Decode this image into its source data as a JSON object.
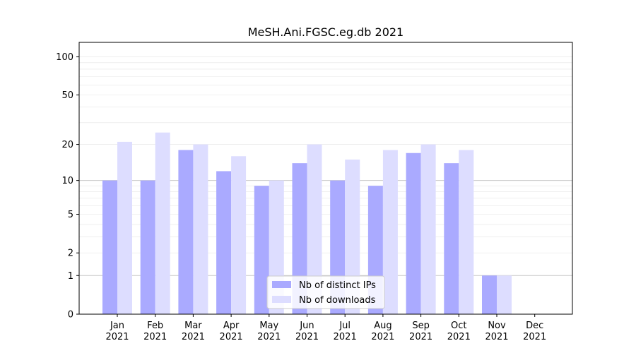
{
  "chart_data": {
    "type": "bar",
    "title": "MeSH.Ani.FGSC.eg.db 2021",
    "xlabel": "",
    "ylabel": "",
    "yscale": "log(1+y)",
    "ylim": [
      0,
      130
    ],
    "yticks": [
      0,
      1,
      2,
      5,
      10,
      20,
      50,
      100
    ],
    "grid": true,
    "legend_position": "bottom-center",
    "categories": [
      "Jan\n2021",
      "Feb\n2021",
      "Mar\n2021",
      "Apr\n2021",
      "May\n2021",
      "Jun\n2021",
      "Jul\n2021",
      "Aug\n2021",
      "Sep\n2021",
      "Oct\n2021",
      "Nov\n2021",
      "Dec\n2021"
    ],
    "series": [
      {
        "name": "Nb of distinct IPs",
        "color": "#aaaaff",
        "values": [
          10,
          10,
          18,
          12,
          9,
          14,
          10,
          9,
          17,
          14,
          1,
          0
        ]
      },
      {
        "name": "Nb of downloads",
        "color": "#ddddff",
        "values": [
          21,
          25,
          20,
          16,
          10,
          20,
          15,
          18,
          20,
          18,
          1,
          0
        ]
      }
    ]
  }
}
